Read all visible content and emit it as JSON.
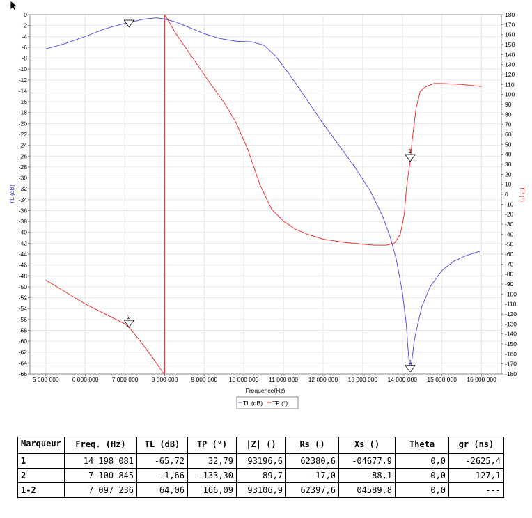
{
  "chart_data": {
    "type": "line",
    "xlabel": "Frequence(Hz)",
    "ylabel_left": "TL (dB)",
    "ylabel_right": "TP (°)",
    "xlim": [
      4600000,
      16500000
    ],
    "ylim_left": [
      -66,
      0
    ],
    "ylim_right": [
      -180,
      180
    ],
    "grid": true,
    "legend_position": "bottom-center",
    "x_ticks": [
      "5 000 000",
      "6 000 000",
      "7 000 000",
      "8 000 000",
      "9 000 000",
      "10 000 000",
      "11 000 000",
      "12 000 000",
      "13 000 000",
      "14 000 000",
      "15 000 000",
      "16 000 000"
    ],
    "x_tick_values": [
      5000000,
      6000000,
      7000000,
      8000000,
      9000000,
      10000000,
      11000000,
      12000000,
      13000000,
      14000000,
      15000000,
      16000000
    ],
    "y_left_ticks": [
      0,
      -2,
      -4,
      -6,
      -8,
      -10,
      -12,
      -14,
      -16,
      -18,
      -20,
      -22,
      -24,
      -26,
      -28,
      -30,
      -32,
      -34,
      -36,
      -38,
      -40,
      -42,
      -44,
      -46,
      -48,
      -50,
      -52,
      -54,
      -56,
      -58,
      -60,
      -62,
      -64,
      -66
    ],
    "y_right_ticks": [
      180,
      170,
      160,
      150,
      140,
      130,
      120,
      110,
      100,
      90,
      80,
      70,
      60,
      50,
      40,
      30,
      20,
      10,
      0,
      -10,
      -20,
      -30,
      -40,
      -50,
      -60,
      -70,
      -80,
      -90,
      -100,
      -110,
      -120,
      -130,
      -140,
      -150,
      -160,
      -170,
      -180
    ],
    "series": [
      {
        "name": "TL (dB)",
        "axis": "left",
        "color": "#5555dd",
        "x": [
          5000000,
          5500000,
          6000000,
          6500000,
          7000000,
          7500000,
          7800000,
          8000000,
          8300000,
          8600000,
          9000000,
          9400000,
          9800000,
          10200000,
          10500000,
          10800000,
          11100000,
          11400000,
          11700000,
          12000000,
          12400000,
          12800000,
          13200000,
          13500000,
          13700000,
          13850000,
          14000000,
          14100000,
          14150000,
          14198081,
          14250000,
          14300000,
          14400000,
          14500000,
          14700000,
          15000000,
          15300000,
          15600000,
          15900000,
          16000000
        ],
        "y": [
          -6.3,
          -5.3,
          -4.0,
          -2.6,
          -1.6,
          -0.8,
          -0.6,
          -0.8,
          -1.4,
          -2.3,
          -3.5,
          -4.4,
          -4.9,
          -5.0,
          -5.6,
          -7.6,
          -10.5,
          -13.6,
          -16.8,
          -20.0,
          -24.0,
          -28.0,
          -32.5,
          -37.0,
          -41.0,
          -45.0,
          -51.0,
          -57.0,
          -62.0,
          -65.7,
          -63.0,
          -60.0,
          -56.5,
          -53.5,
          -50.0,
          -47.0,
          -45.3,
          -44.3,
          -43.6,
          -43.4
        ]
      },
      {
        "name": "TP (°)",
        "axis": "right",
        "color": "#ee3333",
        "x": [
          5000000,
          5500000,
          6000000,
          6500000,
          7000000,
          7100845,
          7400000,
          7700000,
          7980000,
          7990000,
          8000000,
          8300000,
          8700000,
          9100000,
          9500000,
          9800000,
          10100000,
          10400000,
          10700000,
          11000000,
          11300000,
          11600000,
          12000000,
          12500000,
          13000000,
          13300000,
          13600000,
          13800000,
          13950000,
          14050000,
          14100000,
          14150000,
          14198081,
          14250000,
          14350000,
          14450000,
          14600000,
          14800000,
          15000000,
          15500000,
          16000000
        ],
        "y": [
          -86,
          -98,
          -110,
          -120,
          -130,
          -133.3,
          -148,
          -164,
          -180,
          -180,
          180,
          160,
          137,
          114,
          92,
          72,
          45,
          10,
          -15,
          -27,
          -35,
          -40,
          -45,
          -48,
          -50,
          -51,
          -51,
          -49,
          -40,
          -20,
          5,
          20,
          32.8,
          55,
          87,
          103,
          108,
          111,
          111,
          110,
          108
        ]
      }
    ],
    "markers": [
      {
        "label": "1",
        "series": "TL (dB)",
        "x": 14198081,
        "y": -65.72
      },
      {
        "label": "2",
        "series": "TL (dB)",
        "x": 7100845,
        "y": -1.66
      },
      {
        "label": "1",
        "series": "TP (°)",
        "x": 14198081,
        "y": 32.79
      },
      {
        "label": "2",
        "series": "TP (°)",
        "x": 7100845,
        "y": -133.3
      }
    ],
    "vline_x": 8000000
  },
  "table": {
    "headers": [
      "Marqueur",
      "Freq. (Hz)",
      "TL (dB)",
      "TP (°)",
      "|Z| ()",
      "Rs ()",
      "Xs ()",
      "Theta",
      "gr (ns)"
    ],
    "rows": [
      [
        "1",
        "14 198 081",
        "-65,72",
        "32,79",
        "93196,6",
        "62380,6",
        "-04677,9",
        "0,0",
        "-2625,4"
      ],
      [
        "2",
        "7 100 845",
        "-1,66",
        "-133,30",
        "89,7",
        "-17,0",
        "-88,1",
        "0,0",
        "127,1"
      ],
      [
        "1-2",
        "7 097 236",
        "64,06",
        "166,09",
        "93106,9",
        "62397,6",
        "04589,8",
        "0,0",
        "---"
      ]
    ]
  },
  "icons": {
    "cursor": "mouse-pointer-icon",
    "marker": "triangle-down-marker-icon"
  }
}
